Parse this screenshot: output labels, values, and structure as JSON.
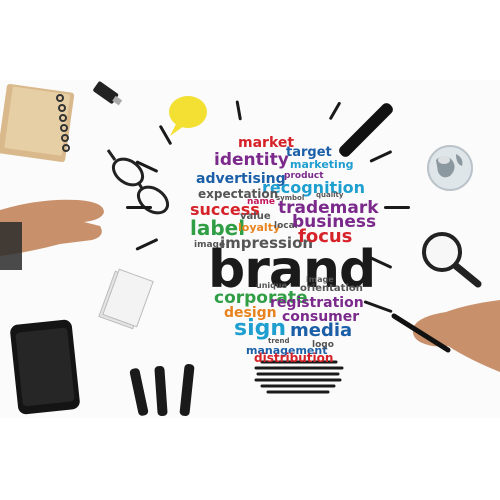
{
  "image": {
    "subject": "brand-concept-lightbulb",
    "colors": {
      "red": "#d6232a",
      "darkred": "#a8192b",
      "blue": "#1b5fa8",
      "teal": "#1e9fd0",
      "green": "#2f9e44",
      "orange": "#e8821e",
      "purple": "#7b2a8c",
      "magenta": "#c2185b",
      "olive": "#6d7a1f",
      "gray": "#555555",
      "black": "#1a1a1a"
    }
  },
  "words": {
    "market": "market",
    "target": "target",
    "identity": "identity",
    "marketing": "marketing",
    "product": "product",
    "advertising": "advertising",
    "recognition": "recognition",
    "expectation": "expectation",
    "symbol": "symbol",
    "quality": "quality",
    "success": "success",
    "name": "name",
    "trademark": "trademark",
    "value": "value",
    "label": "label",
    "loyalty": "loyalty",
    "local": "local",
    "business": "business",
    "image1": "image",
    "impression": "impression",
    "focus": "focus",
    "brand": "brand",
    "image2": "image",
    "unique": "unique",
    "orientation": "orientation",
    "corporate": "corporate",
    "registration": "registration",
    "design": "design",
    "consumer": "consumer",
    "sign": "sign",
    "media": "media",
    "trend": "trend",
    "management": "management",
    "logo": "logo",
    "distribution": "distribution"
  },
  "props": {
    "notepad": "spiral-notepad",
    "usb": "usb-stick",
    "speech_note": "speech-bubble-note",
    "marker_top": "black-marker",
    "glasses": "eyeglasses",
    "globe": "glass-globe",
    "hand_left": "left-hand",
    "hand_right": "right-hand-with-pen",
    "magnifier": "magnifying-glass",
    "cards": "blank-cards",
    "phone": "smartphone",
    "markers": "marker-pens"
  }
}
